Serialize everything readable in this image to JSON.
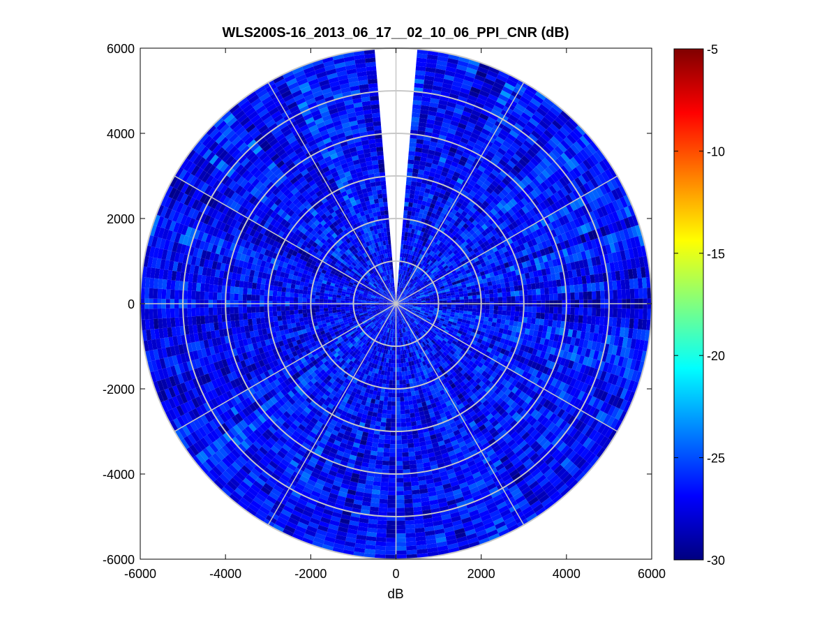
{
  "chart_data": {
    "type": "heatmap",
    "subtype": "polar-ppi",
    "title": "WLS200S-16_2013_06_17__02_10_06_PPI_CNR (dB)",
    "xlabel": "dB",
    "ylabel": "",
    "xlim": [
      -6000,
      6000
    ],
    "ylim": [
      -6000,
      6000
    ],
    "x_ticks": [
      -6000,
      -4000,
      -2000,
      0,
      2000,
      4000,
      6000
    ],
    "y_ticks": [
      -6000,
      -4000,
      -2000,
      0,
      2000,
      4000,
      6000
    ],
    "x_tick_labels": [
      "-6000",
      "-4000",
      "-2000",
      "0",
      "2000",
      "4000",
      "6000"
    ],
    "y_tick_labels": [
      "6000",
      "4000",
      "2000",
      "0",
      "-2000",
      "-4000",
      "-6000"
    ],
    "max_range": 6000,
    "range_rings": [
      1000,
      2000,
      3000,
      4000,
      5000,
      6000
    ],
    "spoke_angles_deg": [
      0,
      30,
      60,
      90,
      120,
      150,
      180,
      210,
      240,
      270,
      300,
      330
    ],
    "missing_sector_deg": [
      -4,
      4
    ],
    "colormap": "jet",
    "clim": [
      -30,
      -5
    ],
    "colorbar_ticks": [
      -5,
      -10,
      -15,
      -20,
      -25,
      -30
    ],
    "colorbar_tick_labels": [
      "-5",
      "-10",
      "-15",
      "-20",
      "-25",
      "-30"
    ],
    "typical_value_range": [
      -30,
      -23
    ],
    "grid": true,
    "grid_color": "#c8c8c8"
  }
}
